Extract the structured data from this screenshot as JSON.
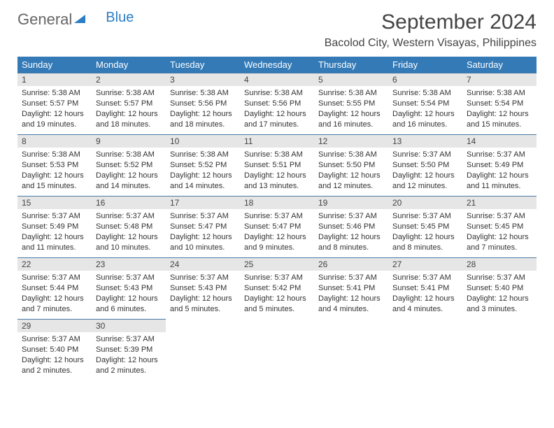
{
  "logo": {
    "text1": "General",
    "text2": "Blue"
  },
  "title": "September 2024",
  "location": "Bacolod City, Western Visayas, Philippines",
  "colors": {
    "header_bg": "#337ab7",
    "header_fg": "#ffffff",
    "daynum_bg": "#e6e6e6",
    "rule": "#4a7aa5",
    "logo_blue": "#2d7dc4"
  },
  "weekdays": [
    "Sunday",
    "Monday",
    "Tuesday",
    "Wednesday",
    "Thursday",
    "Friday",
    "Saturday"
  ],
  "days": [
    {
      "n": "1",
      "sr": "Sunrise: 5:38 AM",
      "ss": "Sunset: 5:57 PM",
      "d1": "Daylight: 12 hours",
      "d2": "and 19 minutes."
    },
    {
      "n": "2",
      "sr": "Sunrise: 5:38 AM",
      "ss": "Sunset: 5:57 PM",
      "d1": "Daylight: 12 hours",
      "d2": "and 18 minutes."
    },
    {
      "n": "3",
      "sr": "Sunrise: 5:38 AM",
      "ss": "Sunset: 5:56 PM",
      "d1": "Daylight: 12 hours",
      "d2": "and 18 minutes."
    },
    {
      "n": "4",
      "sr": "Sunrise: 5:38 AM",
      "ss": "Sunset: 5:56 PM",
      "d1": "Daylight: 12 hours",
      "d2": "and 17 minutes."
    },
    {
      "n": "5",
      "sr": "Sunrise: 5:38 AM",
      "ss": "Sunset: 5:55 PM",
      "d1": "Daylight: 12 hours",
      "d2": "and 16 minutes."
    },
    {
      "n": "6",
      "sr": "Sunrise: 5:38 AM",
      "ss": "Sunset: 5:54 PM",
      "d1": "Daylight: 12 hours",
      "d2": "and 16 minutes."
    },
    {
      "n": "7",
      "sr": "Sunrise: 5:38 AM",
      "ss": "Sunset: 5:54 PM",
      "d1": "Daylight: 12 hours",
      "d2": "and 15 minutes."
    },
    {
      "n": "8",
      "sr": "Sunrise: 5:38 AM",
      "ss": "Sunset: 5:53 PM",
      "d1": "Daylight: 12 hours",
      "d2": "and 15 minutes."
    },
    {
      "n": "9",
      "sr": "Sunrise: 5:38 AM",
      "ss": "Sunset: 5:52 PM",
      "d1": "Daylight: 12 hours",
      "d2": "and 14 minutes."
    },
    {
      "n": "10",
      "sr": "Sunrise: 5:38 AM",
      "ss": "Sunset: 5:52 PM",
      "d1": "Daylight: 12 hours",
      "d2": "and 14 minutes."
    },
    {
      "n": "11",
      "sr": "Sunrise: 5:38 AM",
      "ss": "Sunset: 5:51 PM",
      "d1": "Daylight: 12 hours",
      "d2": "and 13 minutes."
    },
    {
      "n": "12",
      "sr": "Sunrise: 5:38 AM",
      "ss": "Sunset: 5:50 PM",
      "d1": "Daylight: 12 hours",
      "d2": "and 12 minutes."
    },
    {
      "n": "13",
      "sr": "Sunrise: 5:37 AM",
      "ss": "Sunset: 5:50 PM",
      "d1": "Daylight: 12 hours",
      "d2": "and 12 minutes."
    },
    {
      "n": "14",
      "sr": "Sunrise: 5:37 AM",
      "ss": "Sunset: 5:49 PM",
      "d1": "Daylight: 12 hours",
      "d2": "and 11 minutes."
    },
    {
      "n": "15",
      "sr": "Sunrise: 5:37 AM",
      "ss": "Sunset: 5:49 PM",
      "d1": "Daylight: 12 hours",
      "d2": "and 11 minutes."
    },
    {
      "n": "16",
      "sr": "Sunrise: 5:37 AM",
      "ss": "Sunset: 5:48 PM",
      "d1": "Daylight: 12 hours",
      "d2": "and 10 minutes."
    },
    {
      "n": "17",
      "sr": "Sunrise: 5:37 AM",
      "ss": "Sunset: 5:47 PM",
      "d1": "Daylight: 12 hours",
      "d2": "and 10 minutes."
    },
    {
      "n": "18",
      "sr": "Sunrise: 5:37 AM",
      "ss": "Sunset: 5:47 PM",
      "d1": "Daylight: 12 hours",
      "d2": "and 9 minutes."
    },
    {
      "n": "19",
      "sr": "Sunrise: 5:37 AM",
      "ss": "Sunset: 5:46 PM",
      "d1": "Daylight: 12 hours",
      "d2": "and 8 minutes."
    },
    {
      "n": "20",
      "sr": "Sunrise: 5:37 AM",
      "ss": "Sunset: 5:45 PM",
      "d1": "Daylight: 12 hours",
      "d2": "and 8 minutes."
    },
    {
      "n": "21",
      "sr": "Sunrise: 5:37 AM",
      "ss": "Sunset: 5:45 PM",
      "d1": "Daylight: 12 hours",
      "d2": "and 7 minutes."
    },
    {
      "n": "22",
      "sr": "Sunrise: 5:37 AM",
      "ss": "Sunset: 5:44 PM",
      "d1": "Daylight: 12 hours",
      "d2": "and 7 minutes."
    },
    {
      "n": "23",
      "sr": "Sunrise: 5:37 AM",
      "ss": "Sunset: 5:43 PM",
      "d1": "Daylight: 12 hours",
      "d2": "and 6 minutes."
    },
    {
      "n": "24",
      "sr": "Sunrise: 5:37 AM",
      "ss": "Sunset: 5:43 PM",
      "d1": "Daylight: 12 hours",
      "d2": "and 5 minutes."
    },
    {
      "n": "25",
      "sr": "Sunrise: 5:37 AM",
      "ss": "Sunset: 5:42 PM",
      "d1": "Daylight: 12 hours",
      "d2": "and 5 minutes."
    },
    {
      "n": "26",
      "sr": "Sunrise: 5:37 AM",
      "ss": "Sunset: 5:41 PM",
      "d1": "Daylight: 12 hours",
      "d2": "and 4 minutes."
    },
    {
      "n": "27",
      "sr": "Sunrise: 5:37 AM",
      "ss": "Sunset: 5:41 PM",
      "d1": "Daylight: 12 hours",
      "d2": "and 4 minutes."
    },
    {
      "n": "28",
      "sr": "Sunrise: 5:37 AM",
      "ss": "Sunset: 5:40 PM",
      "d1": "Daylight: 12 hours",
      "d2": "and 3 minutes."
    },
    {
      "n": "29",
      "sr": "Sunrise: 5:37 AM",
      "ss": "Sunset: 5:40 PM",
      "d1": "Daylight: 12 hours",
      "d2": "and 2 minutes."
    },
    {
      "n": "30",
      "sr": "Sunrise: 5:37 AM",
      "ss": "Sunset: 5:39 PM",
      "d1": "Daylight: 12 hours",
      "d2": "and 2 minutes."
    }
  ]
}
